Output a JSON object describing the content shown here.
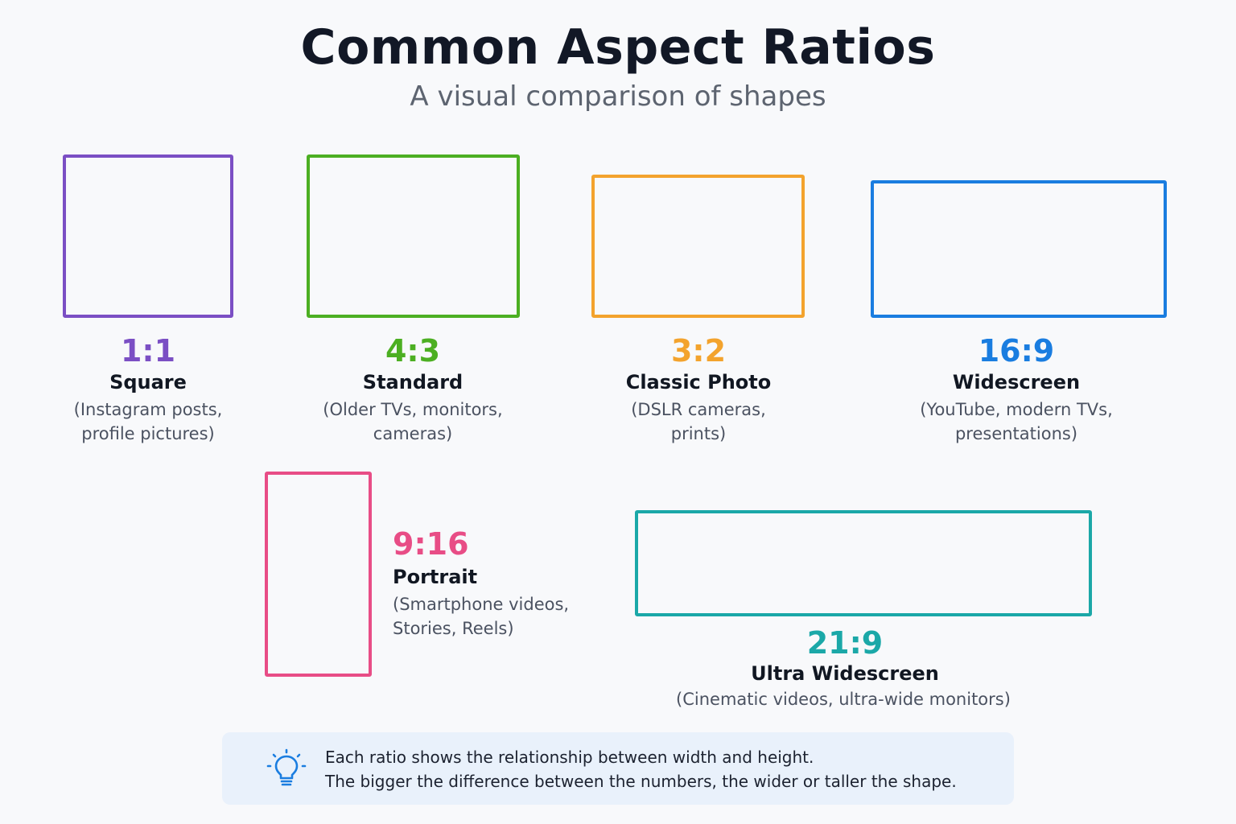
{
  "header": {
    "title": "Common Aspect Ratios",
    "subtitle": "A visual comparison of shapes"
  },
  "ratios": [
    {
      "ratio": "1:1",
      "name": "Square",
      "desc_line1": "(Instagram posts,",
      "desc_line2": "profile pictures)",
      "color": "#7b4fc4"
    },
    {
      "ratio": "4:3",
      "name": "Standard",
      "desc_line1": "(Older TVs, monitors,",
      "desc_line2": "cameras)",
      "color": "#4caf22"
    },
    {
      "ratio": "3:2",
      "name": "Classic Photo",
      "desc_line1": "(DSLR cameras,",
      "desc_line2": "prints)",
      "color": "#f3a32d"
    },
    {
      "ratio": "16:9",
      "name": "Widescreen",
      "desc_line1": "(YouTube, modern TVs,",
      "desc_line2": "presentations)",
      "color": "#1a7de0"
    },
    {
      "ratio": "9:16",
      "name": "Portrait",
      "desc_line1": "(Smartphone videos,",
      "desc_line2": "Stories, Reels)",
      "color": "#e84d86"
    },
    {
      "ratio": "21:9",
      "name": "Ultra Widescreen",
      "desc_line1": "(Cinematic videos, ultra-wide monitors)",
      "color": "#1ba8a8"
    }
  ],
  "tip": {
    "icon": "lightbulb-icon",
    "line1": "Each ratio shows the relationship between width and height.",
    "line2": "The bigger the difference between the numbers, the wider or taller the shape.",
    "color": "#1a7de0"
  }
}
